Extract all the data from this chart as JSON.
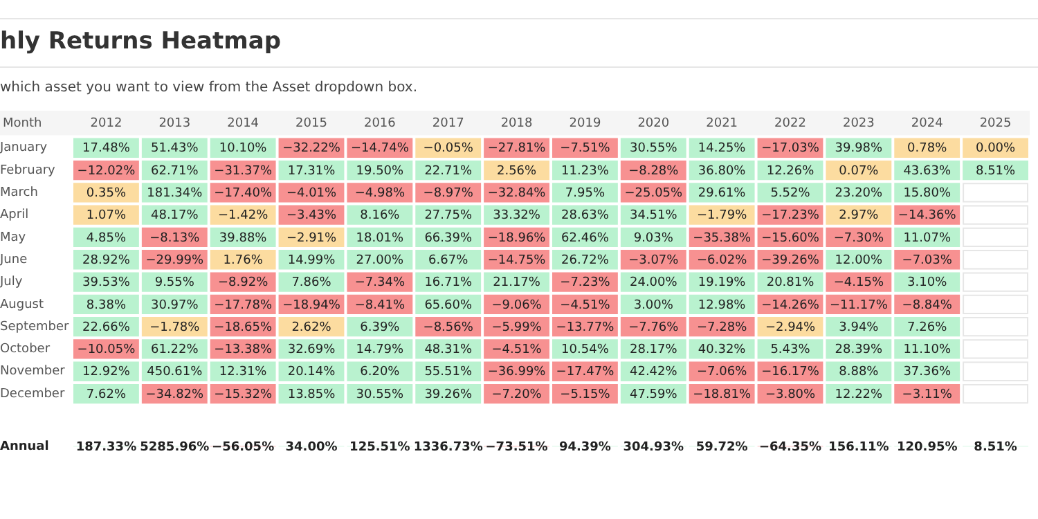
{
  "chart_data": [
    {
      "type": "heatmap",
      "title": "hly Returns Heatmap",
      "subtitle": "which asset you want to view from the Asset dropdown box.",
      "ylabel": "Month",
      "categories": [
        "2012",
        "2013",
        "2014",
        "2015",
        "2016",
        "2017",
        "2018",
        "2019",
        "2020",
        "2021",
        "2022",
        "2023",
        "2024",
        "2025"
      ],
      "y_categories": [
        "January",
        "February",
        "March",
        "April",
        "May",
        "June",
        "July",
        "August",
        "September",
        "October",
        "November",
        "December"
      ],
      "cells": [
        [
          17.48,
          51.43,
          10.1,
          -32.22,
          -14.74,
          -0.05,
          -27.81,
          -7.51,
          30.55,
          14.25,
          -17.03,
          39.98,
          0.78,
          0.0
        ],
        [
          -12.02,
          62.71,
          -31.37,
          17.31,
          19.5,
          22.71,
          2.56,
          11.23,
          -8.28,
          36.8,
          12.26,
          0.07,
          43.63,
          8.51
        ],
        [
          0.35,
          181.34,
          -17.4,
          -4.01,
          -4.98,
          -8.97,
          -32.84,
          7.95,
          -25.05,
          29.61,
          5.52,
          23.2,
          15.8,
          null
        ],
        [
          1.07,
          48.17,
          -1.42,
          -3.43,
          8.16,
          27.75,
          33.32,
          28.63,
          34.51,
          -1.79,
          -17.23,
          2.97,
          -14.36,
          null
        ],
        [
          4.85,
          -8.13,
          39.88,
          -2.91,
          18.01,
          66.39,
          -18.96,
          62.46,
          9.03,
          -35.38,
          -15.6,
          -7.3,
          11.07,
          null
        ],
        [
          28.92,
          -29.99,
          1.76,
          14.99,
          27.0,
          6.67,
          -14.75,
          26.72,
          -3.07,
          -6.02,
          -39.26,
          12.0,
          -7.03,
          null
        ],
        [
          39.53,
          9.55,
          -8.92,
          7.86,
          -7.34,
          16.71,
          21.17,
          -7.23,
          24.0,
          19.19,
          20.81,
          -4.15,
          3.1,
          null
        ],
        [
          8.38,
          30.97,
          -17.78,
          -18.94,
          -8.41,
          65.6,
          -9.06,
          -4.51,
          3.0,
          12.98,
          -14.26,
          -11.17,
          -8.84,
          null
        ],
        [
          22.66,
          -1.78,
          -18.65,
          2.62,
          6.39,
          -8.56,
          -5.99,
          -13.77,
          -7.76,
          -7.28,
          -2.94,
          3.94,
          7.26,
          null
        ],
        [
          -10.05,
          61.22,
          -13.38,
          32.69,
          14.79,
          48.31,
          -4.51,
          10.54,
          28.17,
          40.32,
          5.43,
          28.39,
          11.1,
          null
        ],
        [
          12.92,
          450.61,
          12.31,
          20.14,
          6.2,
          55.51,
          -36.99,
          -17.47,
          42.42,
          -7.06,
          -16.17,
          8.88,
          37.36,
          null
        ],
        [
          7.62,
          -34.82,
          -15.32,
          13.85,
          30.55,
          39.26,
          -7.2,
          -5.15,
          47.59,
          -18.81,
          -3.8,
          12.22,
          -3.11,
          null
        ]
      ],
      "cell_labels": [
        [
          "17.48%",
          "51.43%",
          "10.10%",
          "−32.22%",
          "−14.74%",
          "−0.05%",
          "−27.81%",
          "−7.51%",
          "30.55%",
          "14.25%",
          "−17.03%",
          "39.98%",
          "0.78%",
          "0.00%"
        ],
        [
          "−12.02%",
          "62.71%",
          "−31.37%",
          "17.31%",
          "19.50%",
          "22.71%",
          "2.56%",
          "11.23%",
          "−8.28%",
          "36.80%",
          "12.26%",
          "0.07%",
          "43.63%",
          "8.51%"
        ],
        [
          "0.35%",
          "181.34%",
          "−17.40%",
          "−4.01%",
          "−4.98%",
          "−8.97%",
          "−32.84%",
          "7.95%",
          "−25.05%",
          "29.61%",
          "5.52%",
          "23.20%",
          "15.80%",
          null
        ],
        [
          "1.07%",
          "48.17%",
          "−1.42%",
          "−3.43%",
          "8.16%",
          "27.75%",
          "33.32%",
          "28.63%",
          "34.51%",
          "−1.79%",
          "−17.23%",
          "2.97%",
          "−14.36%",
          null
        ],
        [
          "4.85%",
          "−8.13%",
          "39.88%",
          "−2.91%",
          "18.01%",
          "66.39%",
          "−18.96%",
          "62.46%",
          "9.03%",
          "−35.38%",
          "−15.60%",
          "−7.30%",
          "11.07%",
          null
        ],
        [
          "28.92%",
          "−29.99%",
          "1.76%",
          "14.99%",
          "27.00%",
          "6.67%",
          "−14.75%",
          "26.72%",
          "−3.07%",
          "−6.02%",
          "−39.26%",
          "12.00%",
          "−7.03%",
          null
        ],
        [
          "39.53%",
          "9.55%",
          "−8.92%",
          "7.86%",
          "−7.34%",
          "16.71%",
          "21.17%",
          "−7.23%",
          "24.00%",
          "19.19%",
          "20.81%",
          "−4.15%",
          "3.10%",
          null
        ],
        [
          "8.38%",
          "30.97%",
          "−17.78%",
          "−18.94%",
          "−8.41%",
          "65.60%",
          "−9.06%",
          "−4.51%",
          "3.00%",
          "12.98%",
          "−14.26%",
          "−11.17%",
          "−8.84%",
          null
        ],
        [
          "22.66%",
          "−1.78%",
          "−18.65%",
          "2.62%",
          "6.39%",
          "−8.56%",
          "−5.99%",
          "−13.77%",
          "−7.76%",
          "−7.28%",
          "−2.94%",
          "3.94%",
          "7.26%",
          null
        ],
        [
          "−10.05%",
          "61.22%",
          "−13.38%",
          "32.69%",
          "14.79%",
          "48.31%",
          "−4.51%",
          "10.54%",
          "28.17%",
          "40.32%",
          "5.43%",
          "28.39%",
          "11.10%",
          null
        ],
        [
          "12.92%",
          "450.61%",
          "12.31%",
          "20.14%",
          "6.20%",
          "55.51%",
          "−36.99%",
          "−17.47%",
          "42.42%",
          "−7.06%",
          "−16.17%",
          "8.88%",
          "37.36%",
          null
        ],
        [
          "7.62%",
          "−34.82%",
          "−15.32%",
          "13.85%",
          "30.55%",
          "39.26%",
          "−7.20%",
          "−5.15%",
          "47.59%",
          "−18.81%",
          "−3.80%",
          "12.22%",
          "−3.11%",
          null
        ]
      ]
    },
    {
      "type": "heatmap",
      "tick_labels": "y",
      "categories": [
        "2012",
        "2013",
        "2014",
        "2015",
        "2016",
        "2017",
        "2018",
        "2019",
        "2020",
        "2021",
        "2022",
        "2023",
        "2024",
        "2025"
      ],
      "y_categories": [
        "Annual"
      ],
      "cells": [
        [
          187.33,
          5285.96,
          -56.05,
          34.0,
          125.51,
          1336.73,
          -73.51,
          94.39,
          304.93,
          59.72,
          -64.35,
          156.11,
          120.95,
          8.51
        ]
      ],
      "cell_labels": [
        [
          "187.33%",
          "5285.96%",
          "−56.05%",
          "34.00%",
          "125.51%",
          "1336.73%",
          "−73.51%",
          "94.39%",
          "304.93%",
          "59.72%",
          "−64.35%",
          "156.11%",
          "120.95%",
          "8.51%"
        ]
      ]
    }
  ]
}
